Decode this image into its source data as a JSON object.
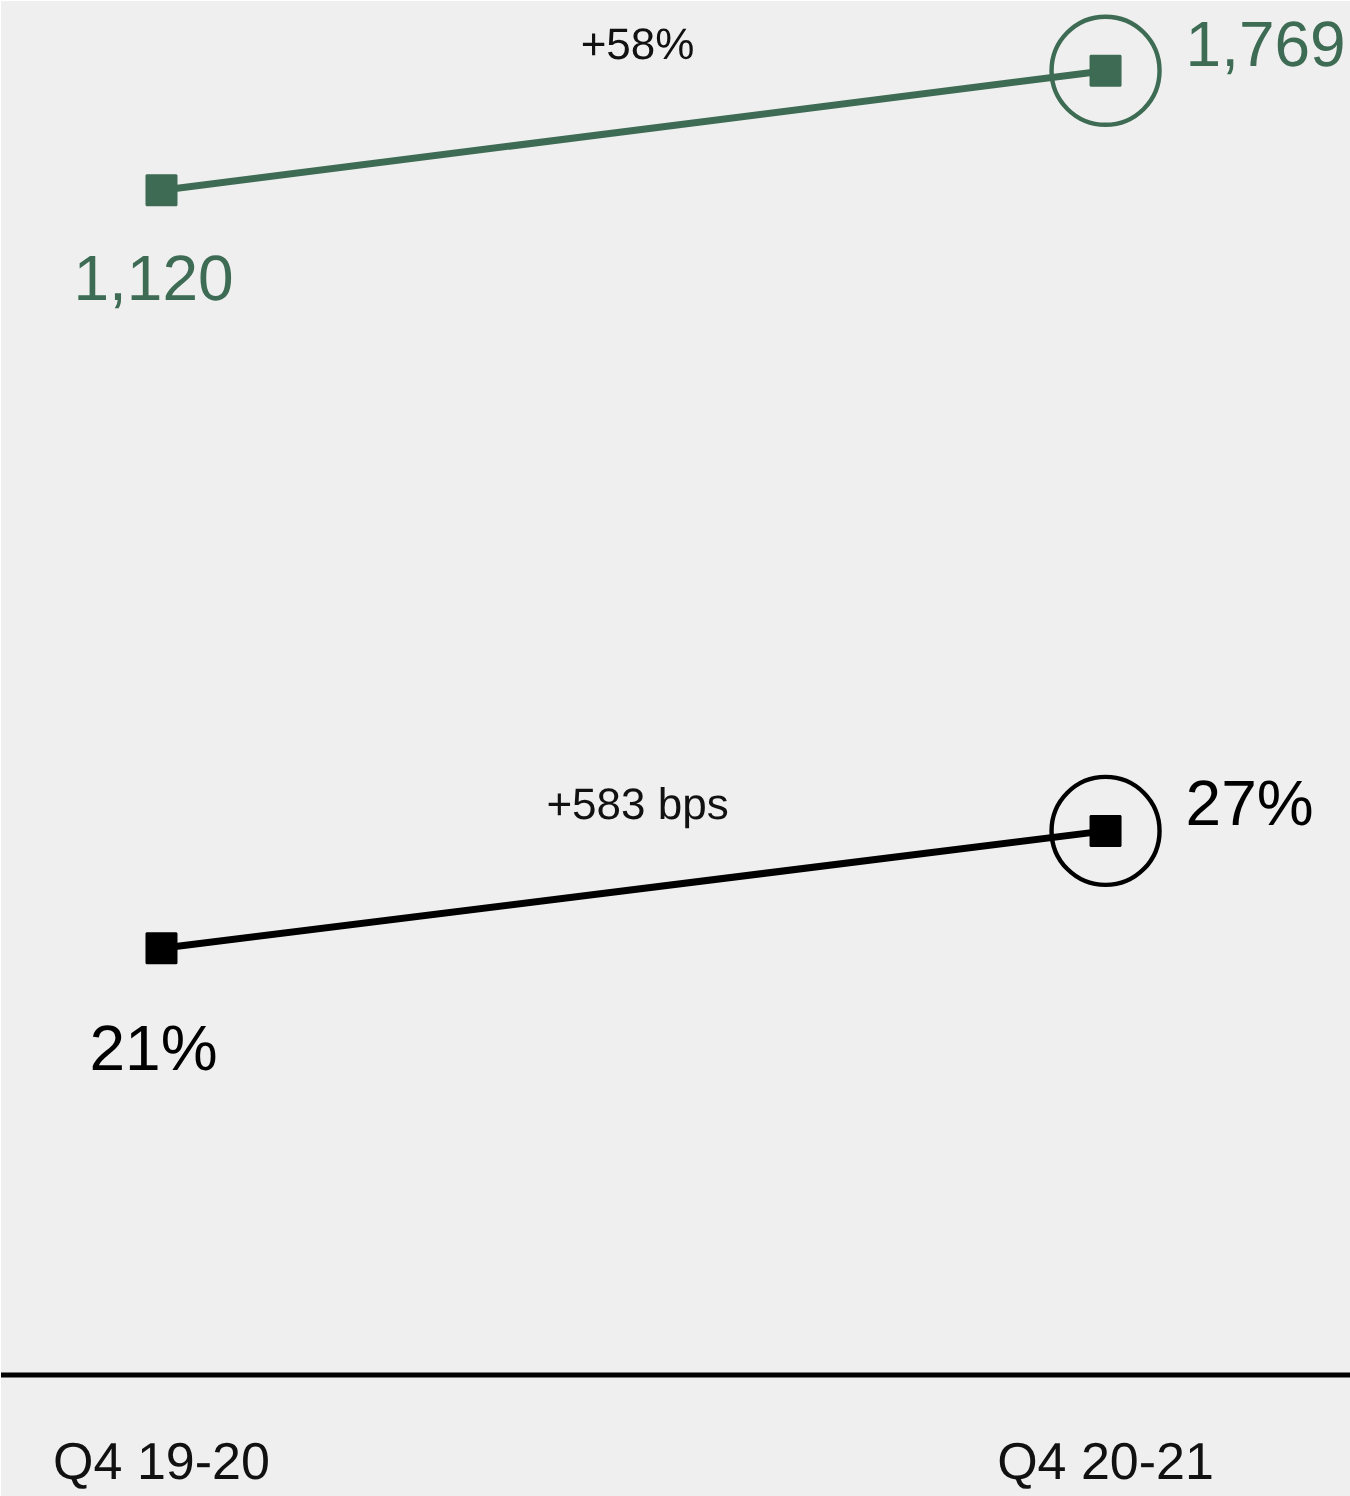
{
  "chart_data": {
    "type": "line",
    "categories": [
      "Q4 19-20",
      "Q4 20-21"
    ],
    "series": [
      {
        "color": "#3d6b53",
        "values": [
          1120,
          1769
        ],
        "value_labels": [
          "1,120",
          "1,769"
        ],
        "axis": "y2"
      },
      {
        "color": "#000000",
        "values": [
          21,
          27
        ],
        "value_labels": [
          "21%",
          "27%"
        ]
      }
    ],
    "ylim": [
      -0.8,
      69.4
    ],
    "y2lim": [
      -5318,
      2148
    ],
    "marker": "square",
    "line_style": "solid",
    "tick_labels": "x",
    "annotations": [
      "+58%",
      "+583 bps"
    ]
  }
}
